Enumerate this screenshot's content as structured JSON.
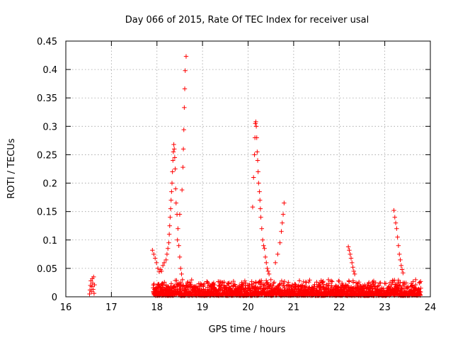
{
  "chart_data": {
    "type": "scatter",
    "title": "Day 066 of 2015, Rate Of TEC Index for receiver usal",
    "xlabel": "GPS time / hours",
    "ylabel": "ROTI / TECUs",
    "xlim": [
      16,
      24
    ],
    "ylim": [
      0,
      0.45
    ],
    "x_ticks": [
      "16",
      "17",
      "18",
      "19",
      "20",
      "21",
      "22",
      "23",
      "24"
    ],
    "y_ticks": [
      "0",
      "0.05",
      "0.1",
      "0.15",
      "0.2",
      "0.25",
      "0.3",
      "0.35",
      "0.4",
      "0.45"
    ],
    "grid": true,
    "marker": "+",
    "series": [
      {
        "name": "ROTI",
        "color": "#ff0000",
        "points": [
          [
            16.52,
            0.005
          ],
          [
            16.53,
            0.012
          ],
          [
            16.54,
            0.02
          ],
          [
            16.55,
            0.028
          ],
          [
            16.56,
            0.009
          ],
          [
            16.57,
            0.018
          ],
          [
            16.58,
            0.032
          ],
          [
            16.59,
            0.024
          ],
          [
            16.6,
            0.013
          ],
          [
            16.61,
            0.035
          ],
          [
            16.62,
            0.006
          ],
          [
            16.63,
            0.021
          ],
          [
            17.9,
            0.082
          ],
          [
            17.93,
            0.075
          ],
          [
            17.96,
            0.068
          ],
          [
            17.99,
            0.06
          ],
          [
            18.02,
            0.05
          ],
          [
            18.05,
            0.044
          ],
          [
            18.08,
            0.048
          ],
          [
            18.1,
            0.045
          ],
          [
            18.13,
            0.055
          ],
          [
            18.16,
            0.06
          ],
          [
            18.2,
            0.065
          ],
          [
            18.22,
            0.075
          ],
          [
            18.24,
            0.085
          ],
          [
            18.26,
            0.095
          ],
          [
            18.27,
            0.11
          ],
          [
            18.28,
            0.125
          ],
          [
            18.29,
            0.14
          ],
          [
            18.3,
            0.155
          ],
          [
            18.31,
            0.17
          ],
          [
            18.32,
            0.185
          ],
          [
            18.33,
            0.2
          ],
          [
            18.34,
            0.22
          ],
          [
            18.35,
            0.24
          ],
          [
            18.36,
            0.255
          ],
          [
            18.37,
            0.268
          ],
          [
            18.38,
            0.26
          ],
          [
            18.39,
            0.245
          ],
          [
            18.4,
            0.225
          ],
          [
            18.41,
            0.19
          ],
          [
            18.42,
            0.165
          ],
          [
            18.44,
            0.145
          ],
          [
            18.46,
            0.12
          ],
          [
            18.48,
            0.09
          ],
          [
            18.5,
            0.07
          ],
          [
            18.52,
            0.05
          ],
          [
            18.54,
            0.04
          ],
          [
            18.56,
            0.03
          ],
          [
            18.58,
            0.02
          ],
          [
            18.45,
            0.1
          ],
          [
            18.5,
            0.145
          ],
          [
            18.55,
            0.188
          ],
          [
            18.57,
            0.228
          ],
          [
            18.58,
            0.26
          ],
          [
            18.59,
            0.294
          ],
          [
            18.6,
            0.333
          ],
          [
            18.61,
            0.366
          ],
          [
            18.62,
            0.398
          ],
          [
            18.64,
            0.423
          ],
          [
            20.1,
            0.158
          ],
          [
            20.12,
            0.21
          ],
          [
            20.14,
            0.25
          ],
          [
            20.15,
            0.28
          ],
          [
            20.16,
            0.305
          ],
          [
            20.17,
            0.308
          ],
          [
            20.18,
            0.3
          ],
          [
            20.19,
            0.28
          ],
          [
            20.2,
            0.255
          ],
          [
            20.21,
            0.24
          ],
          [
            20.22,
            0.22
          ],
          [
            20.23,
            0.2
          ],
          [
            20.25,
            0.185
          ],
          [
            20.26,
            0.17
          ],
          [
            20.27,
            0.155
          ],
          [
            20.28,
            0.14
          ],
          [
            20.3,
            0.12
          ],
          [
            20.32,
            0.1
          ],
          [
            20.34,
            0.09
          ],
          [
            20.36,
            0.085
          ],
          [
            20.38,
            0.07
          ],
          [
            20.4,
            0.06
          ],
          [
            20.42,
            0.05
          ],
          [
            20.44,
            0.045
          ],
          [
            20.46,
            0.04
          ],
          [
            20.5,
            0.03
          ],
          [
            20.6,
            0.06
          ],
          [
            20.65,
            0.075
          ],
          [
            20.7,
            0.095
          ],
          [
            20.73,
            0.115
          ],
          [
            20.75,
            0.13
          ],
          [
            20.77,
            0.145
          ],
          [
            20.79,
            0.165
          ],
          [
            22.2,
            0.088
          ],
          [
            22.22,
            0.082
          ],
          [
            22.24,
            0.075
          ],
          [
            22.26,
            0.068
          ],
          [
            22.28,
            0.06
          ],
          [
            22.3,
            0.052
          ],
          [
            22.32,
            0.045
          ],
          [
            22.34,
            0.04
          ],
          [
            23.2,
            0.152
          ],
          [
            23.22,
            0.14
          ],
          [
            23.24,
            0.13
          ],
          [
            23.26,
            0.12
          ],
          [
            23.28,
            0.105
          ],
          [
            23.3,
            0.09
          ],
          [
            23.32,
            0.075
          ],
          [
            23.34,
            0.065
          ],
          [
            23.36,
            0.055
          ],
          [
            23.38,
            0.048
          ],
          [
            23.4,
            0.042
          ]
        ]
      }
    ]
  }
}
